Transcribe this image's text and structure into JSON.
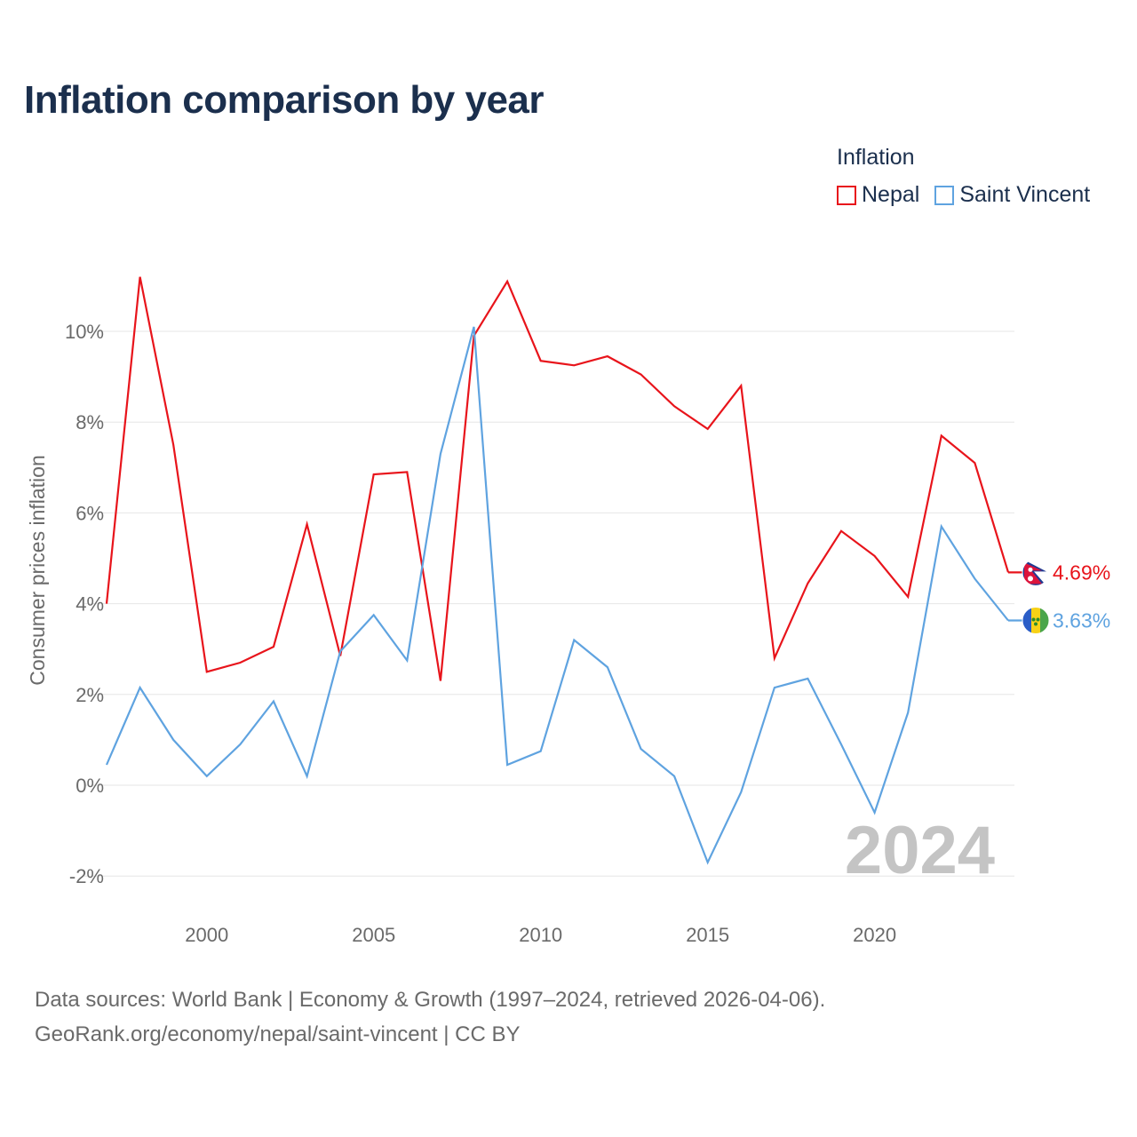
{
  "title": "Inflation comparison by year",
  "legend": {
    "title": "Inflation",
    "items": [
      {
        "name": "Nepal",
        "color": "#e8141b"
      },
      {
        "name": "Saint Vincent",
        "color": "#5fa3e0"
      }
    ]
  },
  "source": {
    "line1": "Data sources: World Bank | Economy & Growth (1997–2024, retrieved 2026-04-06).",
    "line2": "GeoRank.org/economy/nepal/saint-vincent | CC BY"
  },
  "chart_data": {
    "type": "line",
    "title": "Inflation comparison by year",
    "ylabel": "Consumer prices inflation",
    "xlabel": "",
    "xlim": [
      1997,
      2024
    ],
    "ylim": [
      -2.6,
      11.6
    ],
    "yticks": [
      -2,
      0,
      2,
      4,
      6,
      8,
      10
    ],
    "ytick_labels": [
      "-2%",
      "0%",
      "2%",
      "4%",
      "6%",
      "8%",
      "10%"
    ],
    "xticks": [
      2000,
      2005,
      2010,
      2015,
      2020
    ],
    "xtick_labels": [
      "2000",
      "2005",
      "2010",
      "2015",
      "2020"
    ],
    "watermark_year": "2024",
    "x": [
      1997,
      1998,
      1999,
      2000,
      2001,
      2002,
      2003,
      2004,
      2005,
      2006,
      2007,
      2008,
      2009,
      2010,
      2011,
      2012,
      2013,
      2014,
      2015,
      2016,
      2017,
      2018,
      2019,
      2020,
      2021,
      2022,
      2023,
      2024
    ],
    "series": [
      {
        "name": "Nepal",
        "color": "#e8141b",
        "values": [
          4.0,
          11.2,
          7.5,
          2.5,
          2.7,
          3.05,
          5.75,
          2.85,
          6.85,
          6.9,
          2.3,
          9.9,
          11.1,
          9.35,
          9.25,
          9.45,
          9.05,
          8.35,
          7.85,
          8.8,
          2.8,
          4.45,
          5.6,
          5.05,
          4.15,
          7.7,
          7.1,
          4.69
        ],
        "end_label": "4.69%",
        "flag_icon": "nepal-flag-icon"
      },
      {
        "name": "Saint Vincent",
        "color": "#5fa3e0",
        "values": [
          0.45,
          2.15,
          1.0,
          0.2,
          0.9,
          1.85,
          0.2,
          2.95,
          3.75,
          2.75,
          7.3,
          10.1,
          0.45,
          0.75,
          3.2,
          2.6,
          0.8,
          0.2,
          -1.7,
          -0.15,
          2.15,
          2.35,
          0.9,
          -0.6,
          1.6,
          5.7,
          4.55,
          3.63
        ],
        "end_label": "3.63%",
        "flag_icon": "saint-vincent-flag-icon"
      }
    ]
  }
}
